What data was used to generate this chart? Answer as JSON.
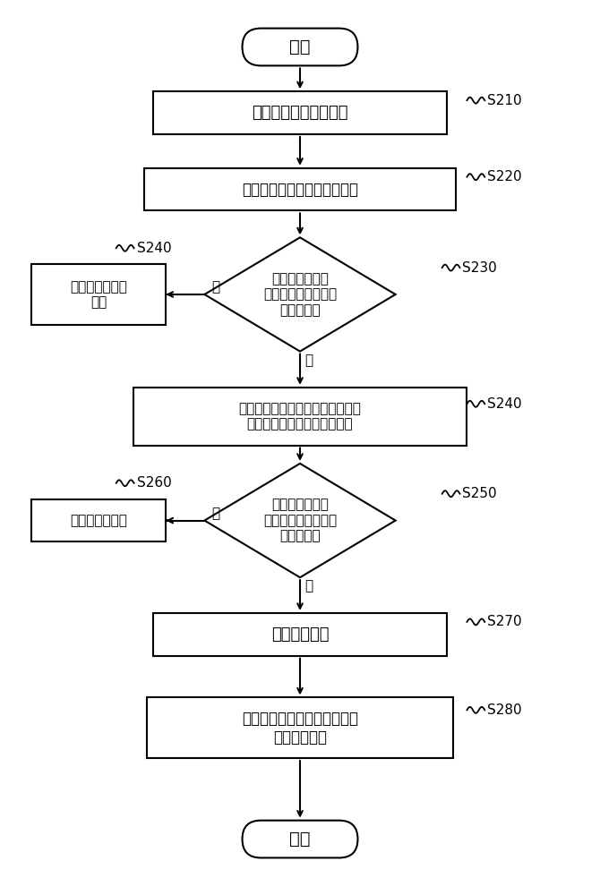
{
  "bg_color": "#ffffff",
  "text_color": "#000000",
  "start_text": "开始",
  "end_text": "结束",
  "s210_text": "获得现场气流压力分布",
  "s220_text": "计算井筒内气流初始压力分布",
  "s230_text": "气流初始压力分\n布与现场气流压力分\n布是否相同",
  "s240l_text": "页岩气井产水量\n为零",
  "s240r_text": "计算井筒内气流修正压力分布，并\n与现场气流压力分布进行拟合",
  "s250_text": "气流修正压力分\n布与现场气流压力分\n布是否相同",
  "s260l_text": "井底不存在积液",
  "s270_text": "井底存在积液",
  "s280_text": "识别出现差异的深度段，确定\n积液液面深度",
  "yes_text": "是",
  "no_text": "否",
  "labels": [
    "S210",
    "S220",
    "S230",
    "S240",
    "S240",
    "S250",
    "S260",
    "S270",
    "S280"
  ]
}
